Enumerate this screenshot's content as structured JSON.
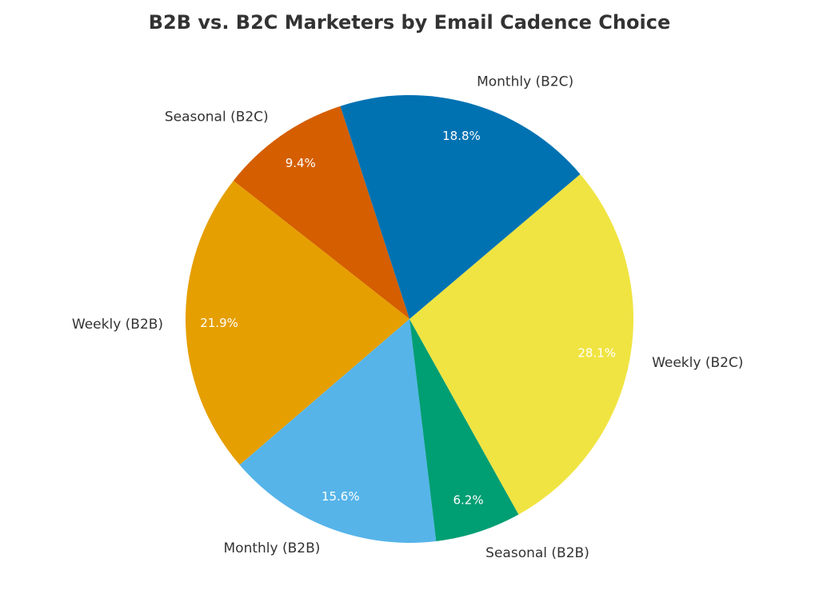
{
  "chart_data": {
    "type": "pie",
    "title": "B2B vs. B2C Marketers by Email Cadence Choice",
    "start_angle_deg": 108,
    "direction": "counterclockwise",
    "slices": [
      {
        "label": "Seasonal (B2C)",
        "value": 9.4,
        "pct_label": "9.4%",
        "color": "#D55E00"
      },
      {
        "label": "Weekly (B2B)",
        "value": 21.9,
        "pct_label": "21.9%",
        "color": "#E69F00"
      },
      {
        "label": "Monthly (B2B)",
        "value": 15.6,
        "pct_label": "15.6%",
        "color": "#56B4E9"
      },
      {
        "label": "Seasonal (B2B)",
        "value": 6.2,
        "pct_label": "6.2%",
        "color": "#009E73"
      },
      {
        "label": "Weekly (B2C)",
        "value": 28.1,
        "pct_label": "28.1%",
        "color": "#F0E442"
      },
      {
        "label": "Monthly (B2C)",
        "value": 18.8,
        "pct_label": "18.8%",
        "color": "#0072B2"
      }
    ]
  }
}
